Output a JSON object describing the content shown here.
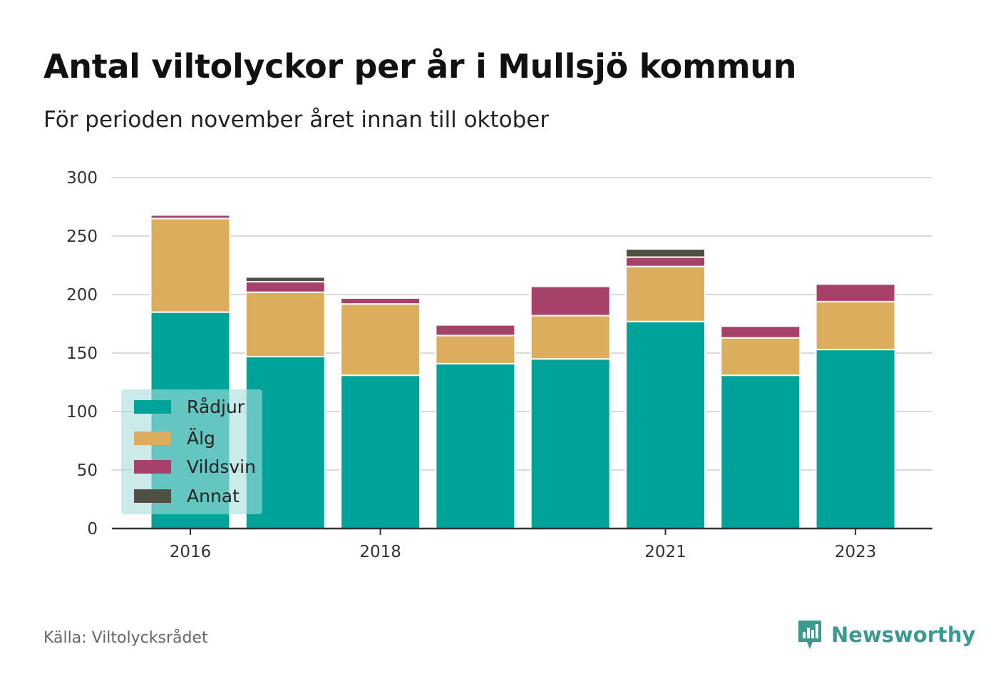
{
  "title": "Antal viltolyckor per år i Mullsjö kommun",
  "subtitle": "För perioden november året innan till oktober",
  "source": "Källa: Viltolycksrådet",
  "brand": {
    "name": "Newsworthy",
    "icon": "newsworthy-logo-icon",
    "color": "#3a9a91"
  },
  "chart_data": {
    "type": "bar",
    "stacked": true,
    "categories": [
      "2016",
      "2017",
      "2018",
      "2019",
      "2020",
      "2021",
      "2022",
      "2023"
    ],
    "x_tick_labels": [
      "2016",
      "2018",
      "2021",
      "2023"
    ],
    "ylim": [
      0,
      300
    ],
    "y_ticks": [
      0,
      50,
      100,
      150,
      200,
      250,
      300
    ],
    "grid": true,
    "legend_position": "bottom-left",
    "series": [
      {
        "name": "Rådjur",
        "color": "#00a398",
        "values": [
          185,
          147,
          131,
          141,
          145,
          177,
          131,
          153
        ]
      },
      {
        "name": "Älg",
        "color": "#dbad5c",
        "values": [
          80,
          55,
          61,
          24,
          37,
          47,
          32,
          41
        ]
      },
      {
        "name": "Vildsvin",
        "color": "#a64269",
        "values": [
          3,
          9,
          5,
          9,
          25,
          8,
          10,
          15
        ]
      },
      {
        "name": "Annat",
        "color": "#4f5043",
        "values": [
          0,
          4,
          0,
          0,
          0,
          7,
          0,
          0
        ]
      }
    ]
  }
}
